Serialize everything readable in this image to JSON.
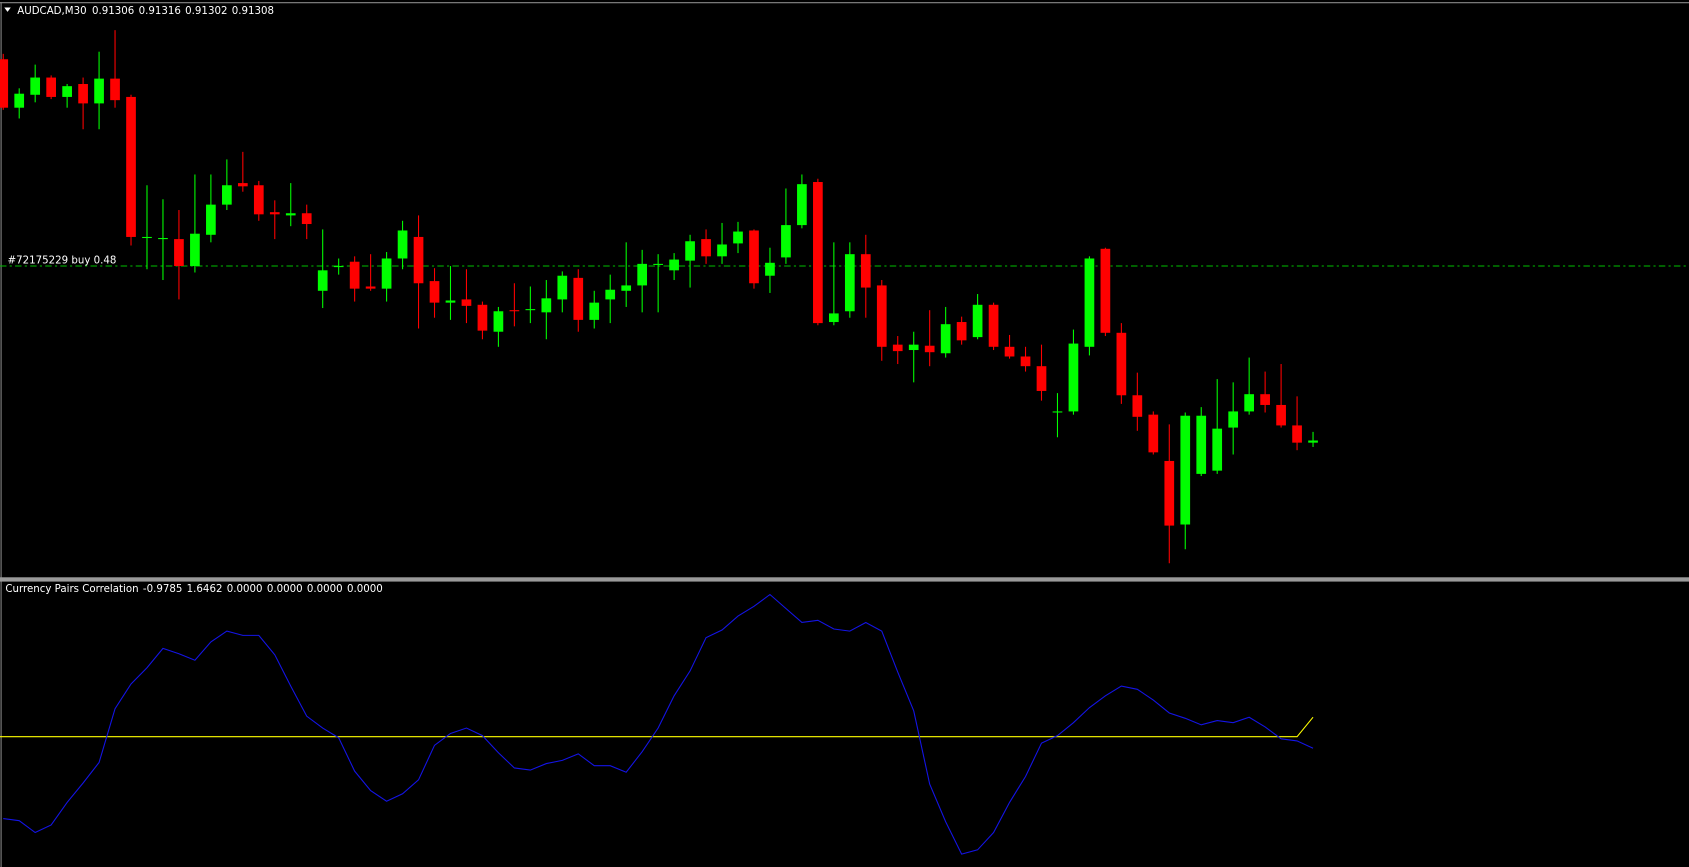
{
  "chart_data": [
    {
      "type": "candlestick",
      "title": "AUDCAD,M30",
      "open": [
        0.91662,
        0.91617,
        0.91629,
        0.91645,
        0.91627,
        0.91639,
        0.91621,
        0.91644,
        0.91627,
        0.91496,
        0.91495,
        0.91495,
        0.9147,
        0.91499,
        0.91527,
        0.91547,
        0.91545,
        0.9152,
        0.91517,
        0.91519,
        0.91447,
        0.91469,
        0.91474,
        0.91451,
        0.91449,
        0.91477,
        0.91497,
        0.91456,
        0.91436,
        0.91439,
        0.91434,
        0.91409,
        0.91429,
        0.91429,
        0.91427,
        0.91439,
        0.91459,
        0.9142,
        0.91439,
        0.91447,
        0.91452,
        0.91471,
        0.91466,
        0.91475,
        0.91495,
        0.91479,
        0.91491,
        0.91503,
        0.91461,
        0.91478,
        0.91508,
        0.91548,
        0.91418,
        0.91428,
        0.91481,
        0.91452,
        0.91397,
        0.91392,
        0.91396,
        0.91389,
        0.91418,
        0.91404,
        0.91434,
        0.91395,
        0.91386,
        0.91377,
        0.91334,
        0.91335,
        0.91395,
        0.91486,
        0.91408,
        0.9135,
        0.91332,
        0.91289,
        0.9123,
        0.91277,
        0.9128,
        0.9132,
        0.91335,
        0.91351,
        0.91341,
        0.91322,
        0.91306
      ],
      "high": [
        0.91667,
        0.91635,
        0.91657,
        0.91647,
        0.91639,
        0.91645,
        0.91669,
        0.91689,
        0.91629,
        0.91545,
        0.91532,
        0.91522,
        0.91555,
        0.91555,
        0.91569,
        0.91576,
        0.91549,
        0.91531,
        0.91547,
        0.91527,
        0.91504,
        0.91477,
        0.91479,
        0.91481,
        0.91483,
        0.91512,
        0.91517,
        0.91468,
        0.9147,
        0.91467,
        0.91437,
        0.91432,
        0.91454,
        0.91451,
        0.91457,
        0.91465,
        0.91467,
        0.91447,
        0.91462,
        0.91492,
        0.91485,
        0.91481,
        0.91482,
        0.91499,
        0.91504,
        0.9151,
        0.91511,
        0.91504,
        0.91487,
        0.91542,
        0.91555,
        0.91551,
        0.91492,
        0.91492,
        0.91499,
        0.91457,
        0.91405,
        0.91409,
        0.91429,
        0.91432,
        0.91423,
        0.91444,
        0.91436,
        0.91406,
        0.91395,
        0.91397,
        0.91352,
        0.91411,
        0.91479,
        0.91487,
        0.91417,
        0.91371,
        0.91335,
        0.91323,
        0.91334,
        0.91339,
        0.91365,
        0.91362,
        0.91385,
        0.91372,
        0.91379,
        0.91349,
        0.91316
      ],
      "low": [
        0.91615,
        0.91607,
        0.91622,
        0.91625,
        0.91617,
        0.91597,
        0.91597,
        0.91617,
        0.91489,
        0.91467,
        0.91457,
        0.91439,
        0.91464,
        0.91492,
        0.91522,
        0.91539,
        0.91512,
        0.91495,
        0.91507,
        0.91495,
        0.91431,
        0.91462,
        0.91437,
        0.91447,
        0.91437,
        0.91467,
        0.91412,
        0.91422,
        0.9142,
        0.91417,
        0.91402,
        0.91395,
        0.91414,
        0.91417,
        0.91402,
        0.91427,
        0.91409,
        0.91412,
        0.91417,
        0.91432,
        0.91427,
        0.91427,
        0.91457,
        0.9145,
        0.91472,
        0.91472,
        0.91482,
        0.91449,
        0.91445,
        0.91472,
        0.91505,
        0.91415,
        0.91415,
        0.91422,
        0.91422,
        0.91382,
        0.91379,
        0.91362,
        0.91377,
        0.91385,
        0.91397,
        0.91402,
        0.91392,
        0.91384,
        0.91372,
        0.91345,
        0.91311,
        0.91332,
        0.91387,
        0.91405,
        0.91342,
        0.91317,
        0.91295,
        0.91194,
        0.91207,
        0.91275,
        0.91277,
        0.91295,
        0.91332,
        0.91334,
        0.9132,
        0.91299,
        0.91302
      ],
      "close": [
        0.91617,
        0.9163,
        0.91645,
        0.91627,
        0.91637,
        0.91621,
        0.91644,
        0.91624,
        0.91497,
        0.91497,
        0.91496,
        0.9147,
        0.915,
        0.91527,
        0.91545,
        0.91544,
        0.91518,
        0.91518,
        0.91519,
        0.91509,
        0.91466,
        0.9147,
        0.91449,
        0.91449,
        0.91477,
        0.91503,
        0.91454,
        0.91436,
        0.91438,
        0.91433,
        0.9141,
        0.91428,
        0.91428,
        0.9143,
        0.9144,
        0.91461,
        0.9142,
        0.91436,
        0.91448,
        0.91452,
        0.91472,
        0.91472,
        0.91476,
        0.91493,
        0.91479,
        0.9149,
        0.91502,
        0.91454,
        0.91473,
        0.91508,
        0.91546,
        0.91417,
        0.91426,
        0.91481,
        0.9145,
        0.91395,
        0.91391,
        0.91397,
        0.9139,
        0.91416,
        0.91401,
        0.91434,
        0.91395,
        0.91386,
        0.91377,
        0.91354,
        0.91335,
        0.91398,
        0.91477,
        0.91408,
        0.9135,
        0.9133,
        0.91297,
        0.91229,
        0.91331,
        0.91331,
        0.91319,
        0.91335,
        0.91351,
        0.91341,
        0.91322,
        0.91306,
        0.91308
      ],
      "up_color": "#00ff00",
      "down_color": "#ff0000",
      "ylim": [
        0.91182,
        0.91714
      ],
      "order_line": {
        "label": "#72175229 buy 0.48",
        "value": 0.9147,
        "color": "#00c000"
      }
    },
    {
      "type": "line",
      "title": "Currency Pairs Correlation",
      "series": [
        {
          "color": "#1414e6",
          "values": [
            -6.91,
            -7.09,
            -8.09,
            -7.45,
            -5.55,
            -3.91,
            -2.18,
            2.36,
            4.45,
            5.82,
            7.45,
            7,
            6.45,
            8,
            8.91,
            8.55,
            8.55,
            6.91,
            4.27,
            1.73,
            0.73,
            -0.09,
            -2.91,
            -4.55,
            -5.45,
            -4.82,
            -3.64,
            -0.73,
            0.27,
            0.73,
            0.09,
            -1.36,
            -2.64,
            -2.82,
            -2.27,
            -2,
            -1.45,
            -2.45,
            -2.45,
            -3,
            -1.27,
            0.73,
            3.45,
            5.55,
            8.36,
            9,
            10.18,
            11,
            12,
            10.82,
            9.64,
            9.82,
            9.09,
            8.91,
            9.64,
            8.91,
            5.45,
            2.18,
            -4,
            -7.18,
            -9.91,
            -9.55,
            -8.09,
            -5.55,
            -3.36,
            -0.55,
            0.09,
            1.18,
            2.45,
            3.45,
            4.27,
            4,
            3.09,
            2,
            1.55,
            1,
            1.36,
            1.18,
            1.64,
            0.82,
            -0.18,
            -0.36,
            -0.9785
          ]
        },
        {
          "color": "#ffff00",
          "values": [
            0,
            0,
            0,
            0,
            0,
            0,
            0,
            0,
            0,
            0,
            0,
            0,
            0,
            0,
            0,
            0,
            0,
            0,
            0,
            0,
            0,
            0,
            0,
            0,
            0,
            0,
            0,
            0,
            0,
            0,
            0,
            0,
            0,
            0,
            0,
            0,
            0,
            0,
            0,
            0,
            0,
            0,
            0,
            0,
            0,
            0,
            0,
            0,
            0,
            0,
            0,
            0,
            0,
            0,
            0,
            0,
            0,
            0,
            0,
            0,
            0,
            0,
            0,
            0,
            0,
            0,
            0,
            0,
            0,
            0,
            0,
            0,
            0,
            0,
            0,
            0,
            0,
            0,
            0,
            0,
            0,
            0,
            1.6462
          ]
        }
      ],
      "extra_values": [
        {
          "value": 0,
          "label": "0.0000"
        },
        {
          "value": 0,
          "label": "0.0000"
        },
        {
          "value": 0,
          "label": "0.0000"
        },
        {
          "value": 0,
          "label": "0.0000"
        }
      ],
      "ylim": [
        -11,
        13.09
      ]
    }
  ]
}
